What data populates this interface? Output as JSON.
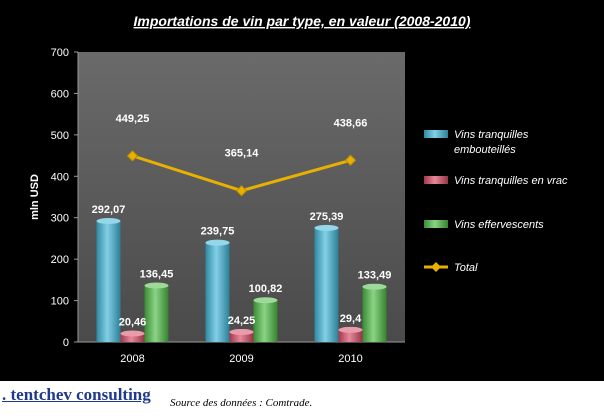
{
  "chart_data": {
    "type": "bar+line",
    "title": "Importations de vin par type, en valeur (2008-2010)",
    "ylabel": "mln USD",
    "xlabel": "",
    "ylim": [
      0,
      700
    ],
    "yticks": [
      0,
      100,
      200,
      300,
      400,
      500,
      600,
      700
    ],
    "categories": [
      "2008",
      "2009",
      "2010"
    ],
    "series": [
      {
        "name": "Vins tranquilles embouteillés",
        "type": "bar",
        "color": "#3fb6d8",
        "values": [
          292.07,
          239.75,
          275.39
        ],
        "labels": [
          "292,07",
          "239,75",
          "275,39"
        ]
      },
      {
        "name": "Vins tranquilles  en vrac",
        "type": "bar",
        "color": "#d84a64",
        "values": [
          20.46,
          24.25,
          29.4
        ],
        "labels": [
          "20,46",
          "24,25",
          "29,4"
        ]
      },
      {
        "name": "Vins effervescents",
        "type": "bar",
        "color": "#4cbb45",
        "values": [
          136.45,
          100.82,
          133.49
        ],
        "labels": [
          "136,45",
          "100,82",
          "133,49"
        ]
      },
      {
        "name": "Total",
        "type": "line",
        "color": "#e8b000",
        "values": [
          449.25,
          365.14,
          438.66
        ],
        "labels": [
          "449,25",
          "365,14",
          "438,66"
        ]
      }
    ],
    "grid": false,
    "legend": "right"
  },
  "footer": {
    "brand": ". tentchev consulting",
    "source": "Source des données : Comtrade."
  },
  "colors": {
    "background": "#000000",
    "plot_area": "#5a5a5a",
    "text": "#ffffff"
  }
}
